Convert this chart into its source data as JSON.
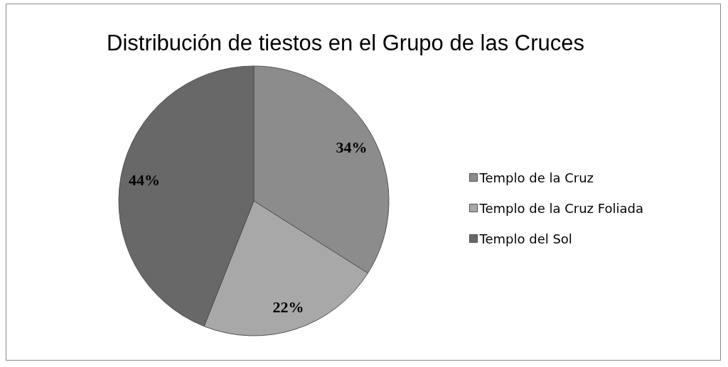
{
  "chart_data": {
    "type": "pie",
    "title": "Distribución de tiestos en el Grupo de las Cruces",
    "categories": [
      "Templo de la Cruz",
      "Templo de la Cruz Foliada",
      "Templo del Sol"
    ],
    "values": [
      34,
      22,
      44
    ],
    "colors": [
      "#8c8c8c",
      "#a8a8a8",
      "#686868"
    ],
    "value_labels": [
      "34%",
      "22%",
      "44%"
    ],
    "legend": "right"
  }
}
